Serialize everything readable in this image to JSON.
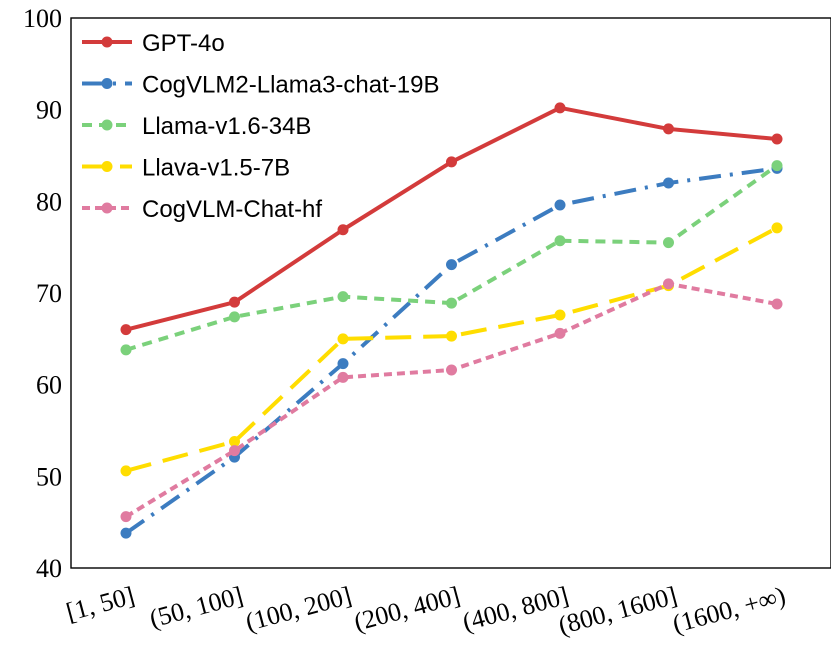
{
  "chart_data": {
    "type": "line",
    "title": "",
    "xlabel": "",
    "ylabel": "",
    "ylim": [
      40,
      100
    ],
    "yticks": [
      40,
      50,
      60,
      70,
      80,
      90,
      100
    ],
    "grid": false,
    "legend_position": "top-left",
    "categories": [
      "[1, 50]",
      "(50, 100]",
      "(100, 200]",
      "(200, 400]",
      "(400, 800]",
      "(800, 1600]",
      "(1600, +∞)"
    ],
    "series": [
      {
        "name": "GPT-4o",
        "color": "#D33B3B",
        "dash": "solid",
        "values": [
          66.0,
          69.0,
          76.9,
          84.3,
          90.2,
          87.9,
          86.8
        ]
      },
      {
        "name": "CogVLM2-Llama3-chat-19B",
        "color": "#3C7CC0",
        "dash": "dashdot",
        "values": [
          43.8,
          52.1,
          62.3,
          73.1,
          79.6,
          82.0,
          83.6
        ]
      },
      {
        "name": "Llama-v1.6-34B",
        "color": "#7BD17B",
        "dash": "dash",
        "values": [
          63.8,
          67.4,
          69.6,
          68.9,
          75.7,
          75.5,
          83.9
        ]
      },
      {
        "name": "Llava-v1.5-7B",
        "color": "#FFDD00",
        "dash": "longdash",
        "values": [
          50.6,
          53.8,
          65.0,
          65.3,
          67.6,
          70.8,
          77.1
        ]
      },
      {
        "name": "CogVLM-Chat-hf",
        "color": "#E07BA0",
        "dash": "shortdash",
        "values": [
          45.6,
          52.8,
          60.8,
          61.6,
          65.6,
          71.0,
          68.8
        ]
      }
    ]
  }
}
